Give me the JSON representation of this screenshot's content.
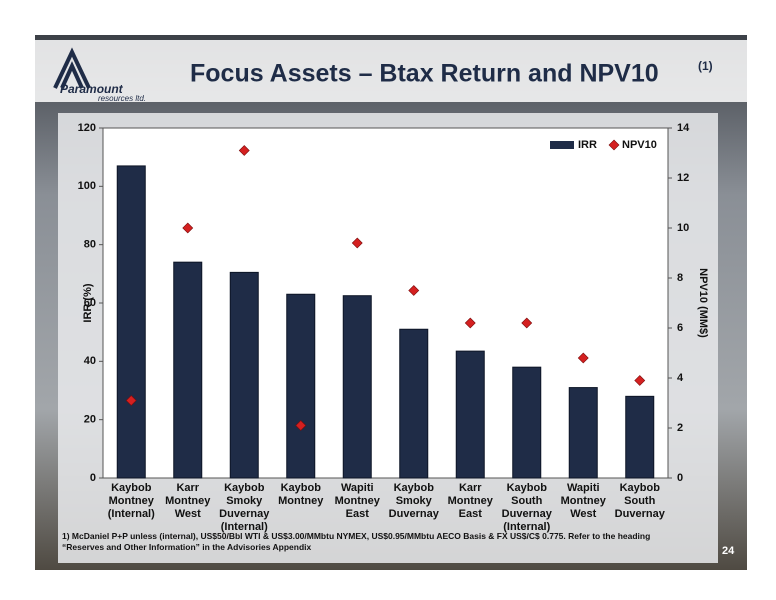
{
  "chart_data": {
    "type": "bar",
    "title": "Focus Assets – Btax Return and NPV10",
    "title_note": "(1)",
    "categories": [
      "Kaybob Montney (Internal)",
      "Karr Montney West",
      "Kaybob Smoky Duvernay (Internal)",
      "Kaybob Montney",
      "Wapiti Montney East",
      "Kaybob Smoky Duvernay",
      "Karr Montney East",
      "Kaybob South Duvernay (Internal)",
      "Wapiti Montney West",
      "Kaybob South Duvernay"
    ],
    "series": [
      {
        "name": "IRR",
        "color": "#1f2c47",
        "values": [
          107,
          74,
          70.5,
          63,
          62.5,
          51,
          43.5,
          38,
          31,
          28
        ]
      },
      {
        "name": "NPV10",
        "color": "#d42020",
        "axis": "y2",
        "values": [
          3.1,
          10.0,
          13.1,
          2.1,
          9.4,
          7.5,
          6.2,
          6.2,
          4.8,
          3.9
        ]
      }
    ],
    "ylabel": "IRR (%)",
    "y2label": "NPV10 (MM$)",
    "ylim": [
      0,
      120
    ],
    "yticks": [
      0,
      20,
      40,
      60,
      80,
      100,
      120
    ],
    "y2lim": [
      0,
      14
    ],
    "y2ticks": [
      0,
      2,
      4,
      6,
      8,
      10,
      12,
      14
    ],
    "legend": "upper right"
  },
  "slide": {
    "logo_name": "Paramount",
    "logo_sub": "resources ltd.",
    "footnote": "1) McDaniel P+P unless (internal), US$50/Bbl WTI & US$3.00/MMbtu NYMEX, US$0.95/MMbtu AECO Basis & FX US$/C$ 0.775.  Refer to the heading “Reserves and Other Information” in the Advisories Appendix",
    "page_number": "24"
  }
}
